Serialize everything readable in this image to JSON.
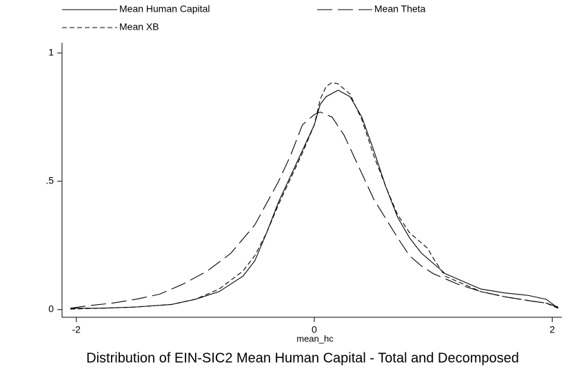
{
  "chart_data": {
    "type": "line",
    "title": "Distribution of EIN-SIC2 Mean Human Capital - Total and Decomposed",
    "x_label": "mean_hc",
    "xlim": [
      -2.12,
      2.08
    ],
    "xticks": [
      -2,
      0,
      2
    ],
    "ylim": [
      -0.03,
      1.04
    ],
    "yticks": [
      0,
      {
        "value": 0.5,
        "label": ".5"
      },
      1
    ],
    "grid": false,
    "series": [
      {
        "name": "Mean Human Capital",
        "color": "#000000",
        "line_style": "solid",
        "x": [
          -2.05,
          -1.8,
          -1.5,
          -1.2,
          -1.0,
          -0.8,
          -0.6,
          -0.5,
          -0.4,
          -0.3,
          -0.2,
          -0.1,
          0,
          0.05,
          0.1,
          0.2,
          0.3,
          0.4,
          0.5,
          0.6,
          0.7,
          0.8,
          0.9,
          1.0,
          1.1,
          1.2,
          1.4,
          1.6,
          1.8,
          1.95,
          2.05
        ],
        "values": [
          0.005,
          0.005,
          0.01,
          0.02,
          0.04,
          0.07,
          0.13,
          0.19,
          0.3,
          0.42,
          0.52,
          0.62,
          0.72,
          0.8,
          0.83,
          0.855,
          0.83,
          0.75,
          0.62,
          0.48,
          0.36,
          0.28,
          0.22,
          0.18,
          0.14,
          0.12,
          0.08,
          0.065,
          0.055,
          0.04,
          0.005
        ]
      },
      {
        "name": "Mean Theta",
        "color": "#000000",
        "line_style": "long-dash",
        "x": [
          -2.05,
          -1.9,
          -1.7,
          -1.5,
          -1.3,
          -1.1,
          -0.9,
          -0.7,
          -0.5,
          -0.3,
          -0.2,
          -0.1,
          0,
          0.05,
          0.15,
          0.25,
          0.35,
          0.5,
          0.7,
          0.8,
          0.9,
          1.0,
          1.2,
          1.4,
          1.6,
          1.8,
          1.95,
          2.05
        ],
        "values": [
          0.005,
          0.015,
          0.025,
          0.04,
          0.06,
          0.1,
          0.15,
          0.22,
          0.33,
          0.5,
          0.6,
          0.72,
          0.76,
          0.77,
          0.75,
          0.68,
          0.58,
          0.43,
          0.28,
          0.21,
          0.17,
          0.14,
          0.1,
          0.07,
          0.05,
          0.035,
          0.025,
          0.01
        ]
      },
      {
        "name": "Mean XB",
        "color": "#000000",
        "line_style": "short-dash",
        "x": [
          -2.05,
          -1.8,
          -1.5,
          -1.2,
          -1.0,
          -0.8,
          -0.6,
          -0.5,
          -0.4,
          -0.3,
          -0.2,
          -0.1,
          0,
          0.05,
          0.1,
          0.15,
          0.2,
          0.3,
          0.4,
          0.5,
          0.6,
          0.7,
          0.8,
          0.9,
          0.95,
          1.0,
          1.1,
          1.2,
          1.4,
          1.6,
          1.8,
          1.95,
          2.05
        ],
        "values": [
          0.002,
          0.005,
          0.01,
          0.02,
          0.04,
          0.08,
          0.15,
          0.21,
          0.3,
          0.41,
          0.51,
          0.61,
          0.72,
          0.82,
          0.87,
          0.885,
          0.88,
          0.84,
          0.74,
          0.6,
          0.48,
          0.37,
          0.3,
          0.26,
          0.24,
          0.2,
          0.13,
          0.11,
          0.07,
          0.05,
          0.035,
          0.025,
          0.005
        ]
      }
    ]
  }
}
